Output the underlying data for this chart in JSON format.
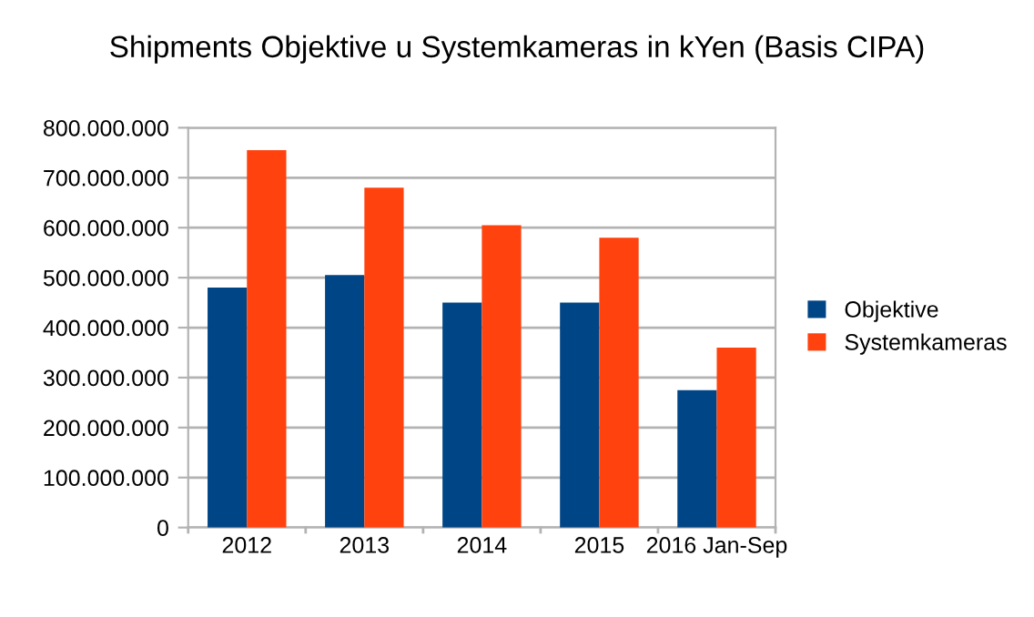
{
  "chart_data": {
    "type": "bar",
    "title": "Shipments Objektive u Systemkameras in kYen (Basis CIPA)",
    "categories": [
      "2012",
      "2013",
      "2014",
      "2015",
      "2016 Jan-Sep"
    ],
    "series": [
      {
        "name": "Objektive",
        "color": "#004586",
        "values": [
          480000000,
          505000000,
          450000000,
          450000000,
          275000000
        ]
      },
      {
        "name": "Systemkameras",
        "color": "#ff420e",
        "values": [
          755000000,
          680000000,
          605000000,
          580000000,
          360000000
        ]
      }
    ],
    "ylim": [
      0,
      800000000
    ],
    "yticks": [
      0,
      {
        "value": 100000000,
        "label": "100.000.000"
      },
      {
        "value": 200000000,
        "label": "200.000.000"
      },
      {
        "value": 300000000,
        "label": "300.000.000"
      },
      {
        "value": 400000000,
        "label": "400.000.000"
      },
      {
        "value": 500000000,
        "label": "500.000.000"
      },
      {
        "value": 600000000,
        "label": "600.000.000"
      },
      {
        "value": 700000000,
        "label": "700.000.000"
      },
      {
        "value": 800000000,
        "label": "800.000.000"
      }
    ],
    "grid": "y",
    "legend": "right"
  }
}
